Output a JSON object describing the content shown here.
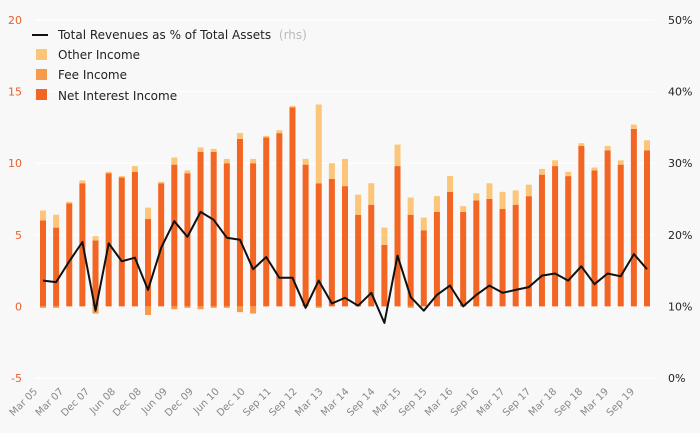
{
  "chart_data": {
    "type": "bar",
    "legend": {
      "position": "top-left",
      "line_label": "Total Revenues as % of Total Assets",
      "line_label_suffix": "(rhs)",
      "items": [
        "Other Income",
        "Fee Income",
        "Net Interest Income"
      ]
    },
    "colors": {
      "net_interest": "#f26522",
      "fee": "#f79a4a",
      "other": "#fbc67a",
      "line": "#111111",
      "left_ticks": "#e8612c",
      "background": "#f8f8f8"
    },
    "y_left": {
      "min": -5,
      "max": 20,
      "ticks": [
        "20",
        "15",
        "10",
        "5",
        "0",
        "-5"
      ]
    },
    "y_right": {
      "min": 0,
      "max": 50,
      "ticks": [
        "50%",
        "40%",
        "30%",
        "20%",
        "10%",
        "0%"
      ]
    },
    "x_ticks": [
      "Mar 05",
      "Mar 07",
      "Dec 07",
      "Jun 08",
      "Dec 08",
      "Jun 09",
      "Dec 09",
      "Jun 10",
      "Dec 10",
      "Sep 11",
      "Sep 12",
      "Mar 13",
      "Mar 14",
      "Sep 14",
      "Mar 15",
      "Sep 15",
      "Mar 16",
      "Sep 16",
      "Mar 17",
      "Sep 17",
      "Mar 18",
      "Sep 18",
      "Mar 19",
      "Sep 19"
    ],
    "net_interest": [
      6.0,
      5.5,
      7.2,
      8.6,
      4.6,
      9.3,
      9.0,
      9.4,
      6.1,
      8.6,
      9.9,
      9.3,
      10.8,
      10.8,
      10.0,
      11.7,
      10.0,
      11.8,
      12.1,
      13.9,
      9.9,
      8.6,
      8.9,
      8.4,
      6.4,
      7.1,
      4.3,
      9.8,
      6.4,
      5.3,
      6.6,
      8.0,
      6.6,
      7.4,
      7.5,
      6.8,
      7.1,
      7.7,
      9.2,
      9.8,
      9.1,
      11.2,
      9.5,
      10.9,
      9.9,
      12.4,
      10.9
    ],
    "fee": [
      -0.1,
      -0.1,
      0.0,
      0.0,
      -0.5,
      0.0,
      0.0,
      0.0,
      -0.6,
      0.0,
      -0.2,
      -0.1,
      -0.2,
      -0.1,
      -0.1,
      -0.4,
      -0.5,
      0.0,
      0.0,
      0.0,
      0.0,
      -0.1,
      0.0,
      0.0,
      0.0,
      0.0,
      0.0,
      0.0,
      -0.1,
      0.0,
      0.0,
      0.0,
      0.0,
      0.0,
      0.0,
      0.0,
      0.0,
      0.0,
      0.0,
      0.0,
      0.0,
      0.0,
      0.0,
      0.0,
      0.0,
      0.0,
      0.0
    ],
    "other": [
      0.7,
      0.9,
      0.1,
      0.2,
      0.3,
      0.1,
      0.1,
      0.4,
      0.8,
      0.1,
      0.5,
      0.2,
      0.3,
      0.2,
      0.3,
      0.4,
      0.3,
      0.1,
      0.2,
      0.1,
      0.4,
      5.5,
      1.1,
      1.9,
      1.4,
      1.5,
      1.2,
      1.5,
      1.2,
      0.9,
      1.1,
      1.1,
      0.4,
      0.5,
      1.1,
      1.2,
      1.0,
      0.8,
      0.4,
      0.4,
      0.3,
      0.2,
      0.2,
      0.3,
      0.3,
      0.3,
      0.7
    ],
    "total_revenue_pct_assets": [
      13.6,
      13.4,
      16.3,
      19.0,
      9.4,
      18.8,
      16.3,
      16.8,
      12.3,
      18.2,
      21.9,
      19.7,
      23.2,
      22.1,
      19.6,
      19.3,
      15.2,
      16.9,
      14.0,
      14.0,
      9.8,
      13.6,
      10.4,
      11.2,
      10.1,
      11.9,
      7.7,
      17.1,
      11.3,
      9.4,
      11.6,
      12.9,
      10.0,
      11.6,
      12.9,
      11.9,
      12.3,
      12.7,
      14.3,
      14.6,
      13.6,
      15.6,
      13.1,
      14.6,
      14.2,
      17.3,
      15.2
    ]
  }
}
